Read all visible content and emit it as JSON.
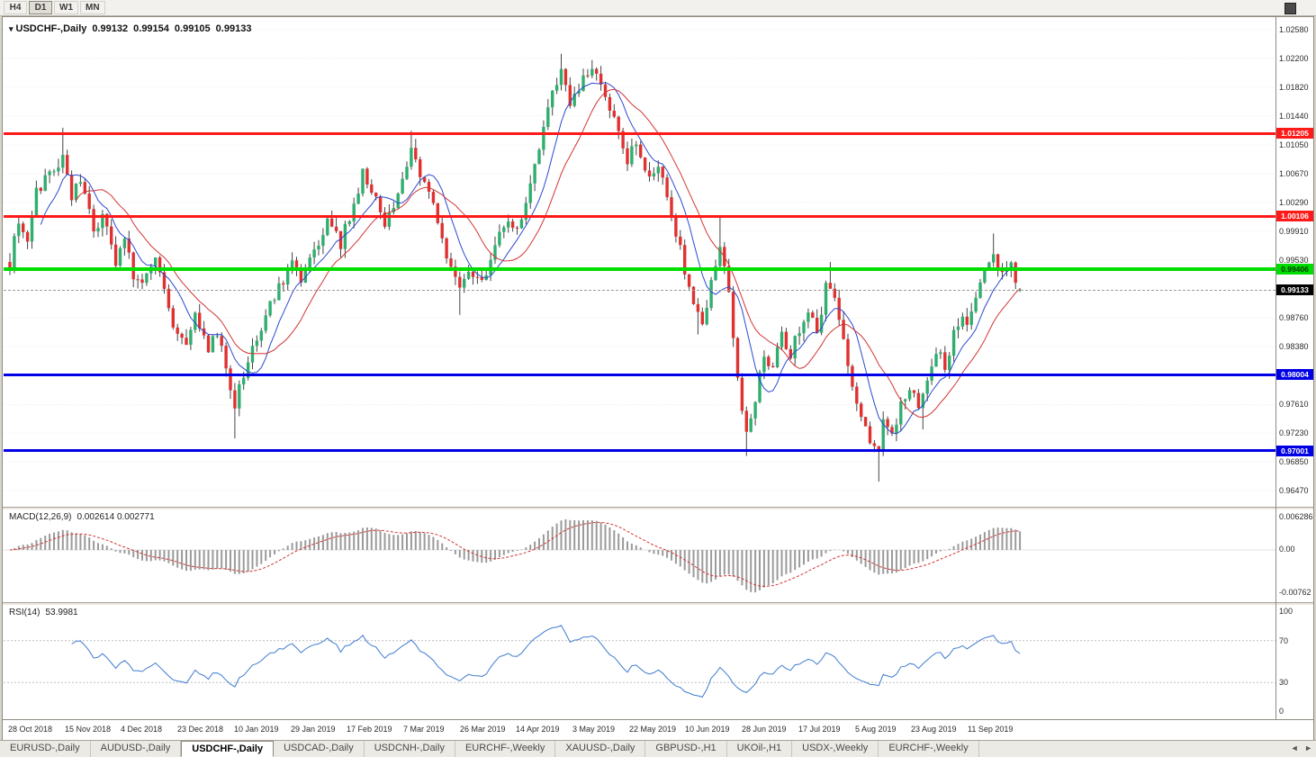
{
  "toolbar": {
    "timeframes": [
      {
        "label": "H4",
        "active": false
      },
      {
        "label": "D1",
        "active": true
      },
      {
        "label": "W1",
        "active": false
      },
      {
        "label": "MN",
        "active": false
      }
    ]
  },
  "icons": {
    "collapse_arrow": "▾",
    "tabs_scroll_left": "◄",
    "tabs_scroll_right": "►"
  },
  "chart": {
    "symbol_title": "USDCHF-,Daily",
    "ohlc": {
      "open": "0.99132",
      "high": "0.99154",
      "low": "0.99105",
      "close": "0.99133"
    }
  },
  "price_axis": {
    "labels": [
      "1.02580",
      "1.02200",
      "1.01820",
      "1.01440",
      "1.01050",
      "1.00670",
      "1.00290",
      "0.99910",
      "0.99530",
      "0.98760",
      "0.98380",
      "0.97610",
      "0.97230",
      "0.96850",
      "0.96470"
    ]
  },
  "levels": [
    {
      "value": "1.01205",
      "price": 1.01205,
      "color": "#ff1a1a",
      "text_color": "#ffffff",
      "thickness": 3
    },
    {
      "value": "1.00106",
      "price": 1.00106,
      "color": "#ff1a1a",
      "text_color": "#ffffff",
      "thickness": 3
    },
    {
      "value": "0.99406",
      "price": 0.99406,
      "color": "#00dd00",
      "text_color": "#liu003300",
      "thickness": 4
    },
    {
      "value": "0.98004",
      "price": 0.98004,
      "color": "#0000e6",
      "text_color": "#ffffff",
      "thickness": 3
    },
    {
      "value": "0.97001",
      "price": 0.97001,
      "color": "#0000e6",
      "text_color": "#ffffff",
      "thickness": 3
    }
  ],
  "current_price": {
    "value": "0.99133",
    "badge_color": "#000000",
    "text_color": "#ffffff"
  },
  "indicators": {
    "macd": {
      "label": "MACD(12,26,9)",
      "values": "0.002614 0.002771",
      "axis_labels": [
        "0.006286",
        "0.00",
        "-0.00762"
      ]
    },
    "rsi": {
      "label": "RSI(14)",
      "value": "53.9981",
      "axis_labels": [
        "100",
        "70",
        "30",
        "0"
      ],
      "levels": [
        70,
        30
      ]
    }
  },
  "time_axis": {
    "labels": [
      "28 Oct 2018",
      "15 Nov 2018",
      "4 Dec 2018",
      "23 Dec 2018",
      "10 Jan 2019",
      "29 Jan 2019",
      "17 Feb 2019",
      "7 Mar 2019",
      "26 Mar 2019",
      "14 Apr 2019",
      "3 May 2019",
      "22 May 2019",
      "10 Jun 2019",
      "28 Jun 2019",
      "17 Jul 2019",
      "5 Aug 2019",
      "23 Aug 2019",
      "11 Sep 2019"
    ]
  },
  "tabs": {
    "active_index": 2,
    "items": [
      "EURUSD-,Daily",
      "AUDUSD-,Daily",
      "USDCHF-,Daily",
      "USDCAD-,Daily",
      "USDCNH-,Daily",
      "EURCHF-,Weekly",
      "XAUUSD-,Daily",
      "GBPUSD-,H1",
      "UKOil-,H1",
      "USDX-,Weekly",
      "EURCHF-,Weekly"
    ]
  },
  "chart_data": {
    "type": "candlestick",
    "symbol": "USDCHF",
    "timeframe": "Daily",
    "title": "USDCHF-,Daily",
    "price_range_visible": [
      0.96303,
      1.02723
    ],
    "horizontal_levels": [
      1.01205,
      1.00106,
      0.99406,
      0.98004,
      0.97001
    ],
    "candles_count": 230,
    "last_candle": {
      "open": 0.99132,
      "high": 0.99154,
      "low": 0.99105,
      "close": 0.99133
    },
    "price_path_anchors": [
      [
        0,
        0.995
      ],
      [
        2,
        1.0008
      ],
      [
        4,
        0.998
      ],
      [
        6,
        1.0042
      ],
      [
        8,
        1.006
      ],
      [
        10,
        1.0075
      ],
      [
        12,
        1.0088
      ],
      [
        14,
        1.003
      ],
      [
        16,
        1.0062
      ],
      [
        19,
        0.999
      ],
      [
        21,
        1.0012
      ],
      [
        24,
        0.995
      ],
      [
        26,
        0.9985
      ],
      [
        28,
        0.9935
      ],
      [
        30,
        0.993
      ],
      [
        33,
        0.9958
      ],
      [
        35,
        0.9912
      ],
      [
        37,
        0.987
      ],
      [
        40,
        0.9845
      ],
      [
        42,
        0.988
      ],
      [
        45,
        0.983
      ],
      [
        47,
        0.9858
      ],
      [
        49,
        0.9812
      ],
      [
        51,
        0.976
      ],
      [
        53,
        0.98
      ],
      [
        55,
        0.9838
      ],
      [
        58,
        0.988
      ],
      [
        61,
        0.9915
      ],
      [
        64,
        0.9945
      ],
      [
        66,
        0.992
      ],
      [
        69,
        0.9965
      ],
      [
        72,
        1.0
      ],
      [
        75,
        0.9975
      ],
      [
        77,
        1.001
      ],
      [
        80,
        1.0068
      ],
      [
        83,
        1.0035
      ],
      [
        85,
        0.9998
      ],
      [
        88,
        1.004
      ],
      [
        91,
        1.0095
      ],
      [
        93,
        1.0068
      ],
      [
        96,
        1.002
      ],
      [
        99,
        0.996
      ],
      [
        102,
        0.9915
      ],
      [
        104,
        0.9945
      ],
      [
        107,
        0.992
      ],
      [
        110,
        0.997
      ],
      [
        113,
        1.001
      ],
      [
        115,
        0.999
      ],
      [
        117,
        1.0035
      ],
      [
        119,
        1.008
      ],
      [
        121,
        1.013
      ],
      [
        123,
        1.018
      ],
      [
        125,
        1.0205
      ],
      [
        127,
        1.016
      ],
      [
        130,
        1.019
      ],
      [
        133,
        1.0205
      ],
      [
        135,
        1.017
      ],
      [
        138,
        1.013
      ],
      [
        140,
        1.0085
      ],
      [
        142,
        1.011
      ],
      [
        145,
        1.006
      ],
      [
        147,
        1.008
      ],
      [
        149,
        1.003
      ],
      [
        151,
        0.999
      ],
      [
        153,
        0.994
      ],
      [
        155,
        0.989
      ],
      [
        157,
        0.987
      ],
      [
        159,
        0.992
      ],
      [
        161,
        0.9975
      ],
      [
        163,
        0.9905
      ],
      [
        165,
        0.979
      ],
      [
        167,
        0.9725
      ],
      [
        169,
        0.977
      ],
      [
        171,
        0.983
      ],
      [
        173,
        0.9805
      ],
      [
        175,
        0.9855
      ],
      [
        177,
        0.983
      ],
      [
        179,
        0.986
      ],
      [
        181,
        0.9885
      ],
      [
        183,
        0.986
      ],
      [
        185,
        0.9915
      ],
      [
        187,
        0.99
      ],
      [
        189,
        0.985
      ],
      [
        191,
        0.979
      ],
      [
        193,
        0.974
      ],
      [
        195,
        0.971
      ],
      [
        197,
        0.9692
      ],
      [
        198,
        0.9735
      ],
      [
        200,
        0.9715
      ],
      [
        202,
        0.976
      ],
      [
        204,
        0.9785
      ],
      [
        206,
        0.976
      ],
      [
        208,
        0.98
      ],
      [
        210,
        0.9835
      ],
      [
        212,
        0.981
      ],
      [
        214,
        0.9855
      ],
      [
        216,
        0.988
      ],
      [
        217,
        0.986
      ],
      [
        219,
        0.9905
      ],
      [
        221,
        0.9935
      ],
      [
        223,
        0.9965
      ],
      [
        225,
        0.993
      ],
      [
        227,
        0.9945
      ],
      [
        229,
        0.9913
      ]
    ],
    "spikes": [
      [
        12,
        "high",
        1.0128
      ],
      [
        51,
        "low",
        0.9716
      ],
      [
        80,
        "high",
        1.0074
      ],
      [
        91,
        "high",
        1.0124
      ],
      [
        102,
        "low",
        0.988
      ],
      [
        125,
        "high",
        1.0226
      ],
      [
        133,
        "high",
        1.0208
      ],
      [
        156,
        "low",
        0.9854
      ],
      [
        161,
        "high",
        1.0012
      ],
      [
        167,
        "low",
        0.9693
      ],
      [
        186,
        "high",
        0.995
      ],
      [
        197,
        "low",
        0.9659
      ],
      [
        207,
        "low",
        0.9728
      ],
      [
        223,
        "high",
        0.9988
      ]
    ],
    "moving_averages": [
      {
        "period": 8,
        "color": "#2b49cf"
      },
      {
        "period": 16,
        "color": "#d23434"
      }
    ],
    "colors": {
      "up": "#2fae6e",
      "down": "#e03131",
      "wick": "#444444",
      "macd_hist": "#9a9a9a",
      "macd_signal": "#d23434",
      "rsi_line": "#3f7bd0"
    }
  }
}
